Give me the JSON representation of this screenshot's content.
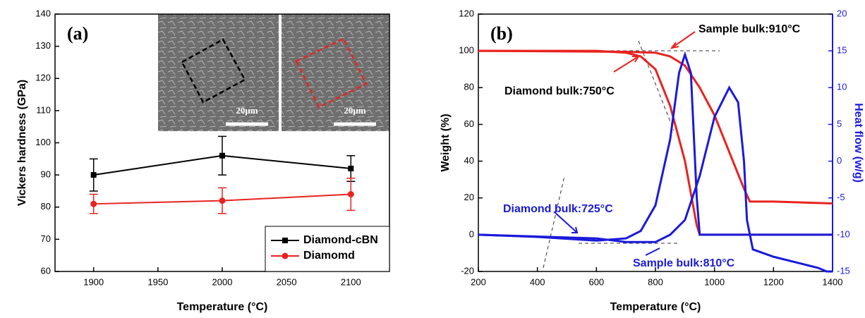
{
  "chart_data": [
    {
      "type": "line",
      "panel_label": "(a)",
      "x_label": "Temperature (°C)",
      "y_label": "Vickers hardness (GPa)",
      "x": [
        1900,
        2000,
        2100
      ],
      "xlim": [
        1870,
        2130
      ],
      "xticks": [
        1900,
        1950,
        2000,
        2050,
        2100
      ],
      "ylim": [
        60,
        140
      ],
      "yticks": [
        60,
        70,
        80,
        90,
        100,
        110,
        120,
        130,
        140
      ],
      "legend": "lower right",
      "inset_labels": [
        "20μm",
        "20μm"
      ],
      "series": [
        {
          "name": "Diamond-cBN",
          "color": "#000000",
          "marker": "square",
          "values": [
            90,
            96,
            92
          ],
          "errors": [
            5,
            6,
            4
          ]
        },
        {
          "name": "Diamomd",
          "color": "#e8231f",
          "marker": "circle",
          "values": [
            81,
            82,
            84
          ],
          "errors": [
            3,
            4,
            5
          ]
        }
      ]
    },
    {
      "type": "line",
      "panel_label": "(b)",
      "x_label": "Temperature (°C)",
      "y_label": "Weight (%)",
      "y2_label": "Heat flow (w/g)",
      "xlim": [
        200,
        1400
      ],
      "xticks": [
        200,
        400,
        600,
        800,
        1000,
        1200,
        1400
      ],
      "ylim": [
        -20,
        120
      ],
      "yticks": [
        -20,
        0,
        20,
        40,
        60,
        80,
        100,
        120
      ],
      "y2lim": [
        -15,
        20
      ],
      "y2ticks": [
        -15,
        -10,
        -5,
        0,
        5,
        10,
        15,
        20
      ],
      "annotations": [
        "Sample bulk:910°C",
        "Diamond bulk:750°C",
        "Diamond bulk:725°C",
        "Sample bulk:810°C"
      ],
      "series": [
        {
          "color": "#e8231f",
          "x": [
            200,
            600,
            700,
            750,
            800,
            850,
            900,
            940,
            950,
            1000,
            1400
          ],
          "values": [
            100,
            100,
            99,
            97,
            90,
            70,
            40,
            5,
            0,
            0,
            0
          ]
        },
        {
          "color": "#e8231f",
          "x": [
            200,
            700,
            800,
            850,
            900,
            950,
            1000,
            1050,
            1100,
            1120,
            1200,
            1400
          ],
          "values": [
            100,
            99.5,
            99,
            97,
            92,
            80,
            65,
            45,
            25,
            18,
            18,
            17
          ]
        },
        {
          "color": "#1a1adb",
          "axis": "y2",
          "x": [
            200,
            400,
            600,
            700,
            750,
            800,
            850,
            880,
            900,
            920,
            940,
            950,
            1000,
            1400
          ],
          "values": [
            -10,
            -10.3,
            -10.8,
            -10.5,
            -9.5,
            -6,
            3,
            12,
            14.5,
            12,
            -5,
            -10,
            -10,
            -10
          ]
        },
        {
          "color": "#1a1adb",
          "axis": "y2",
          "x": [
            200,
            600,
            700,
            800,
            850,
            900,
            950,
            1000,
            1050,
            1080,
            1100,
            1110,
            1130,
            1200,
            1300,
            1350,
            1380,
            1400
          ],
          "values": [
            -10,
            -10.5,
            -11,
            -11,
            -10,
            -8,
            -2,
            6,
            10,
            8,
            0,
            -8,
            -12,
            -13,
            -14,
            -14.5,
            -15,
            -15
          ]
        }
      ]
    }
  ]
}
